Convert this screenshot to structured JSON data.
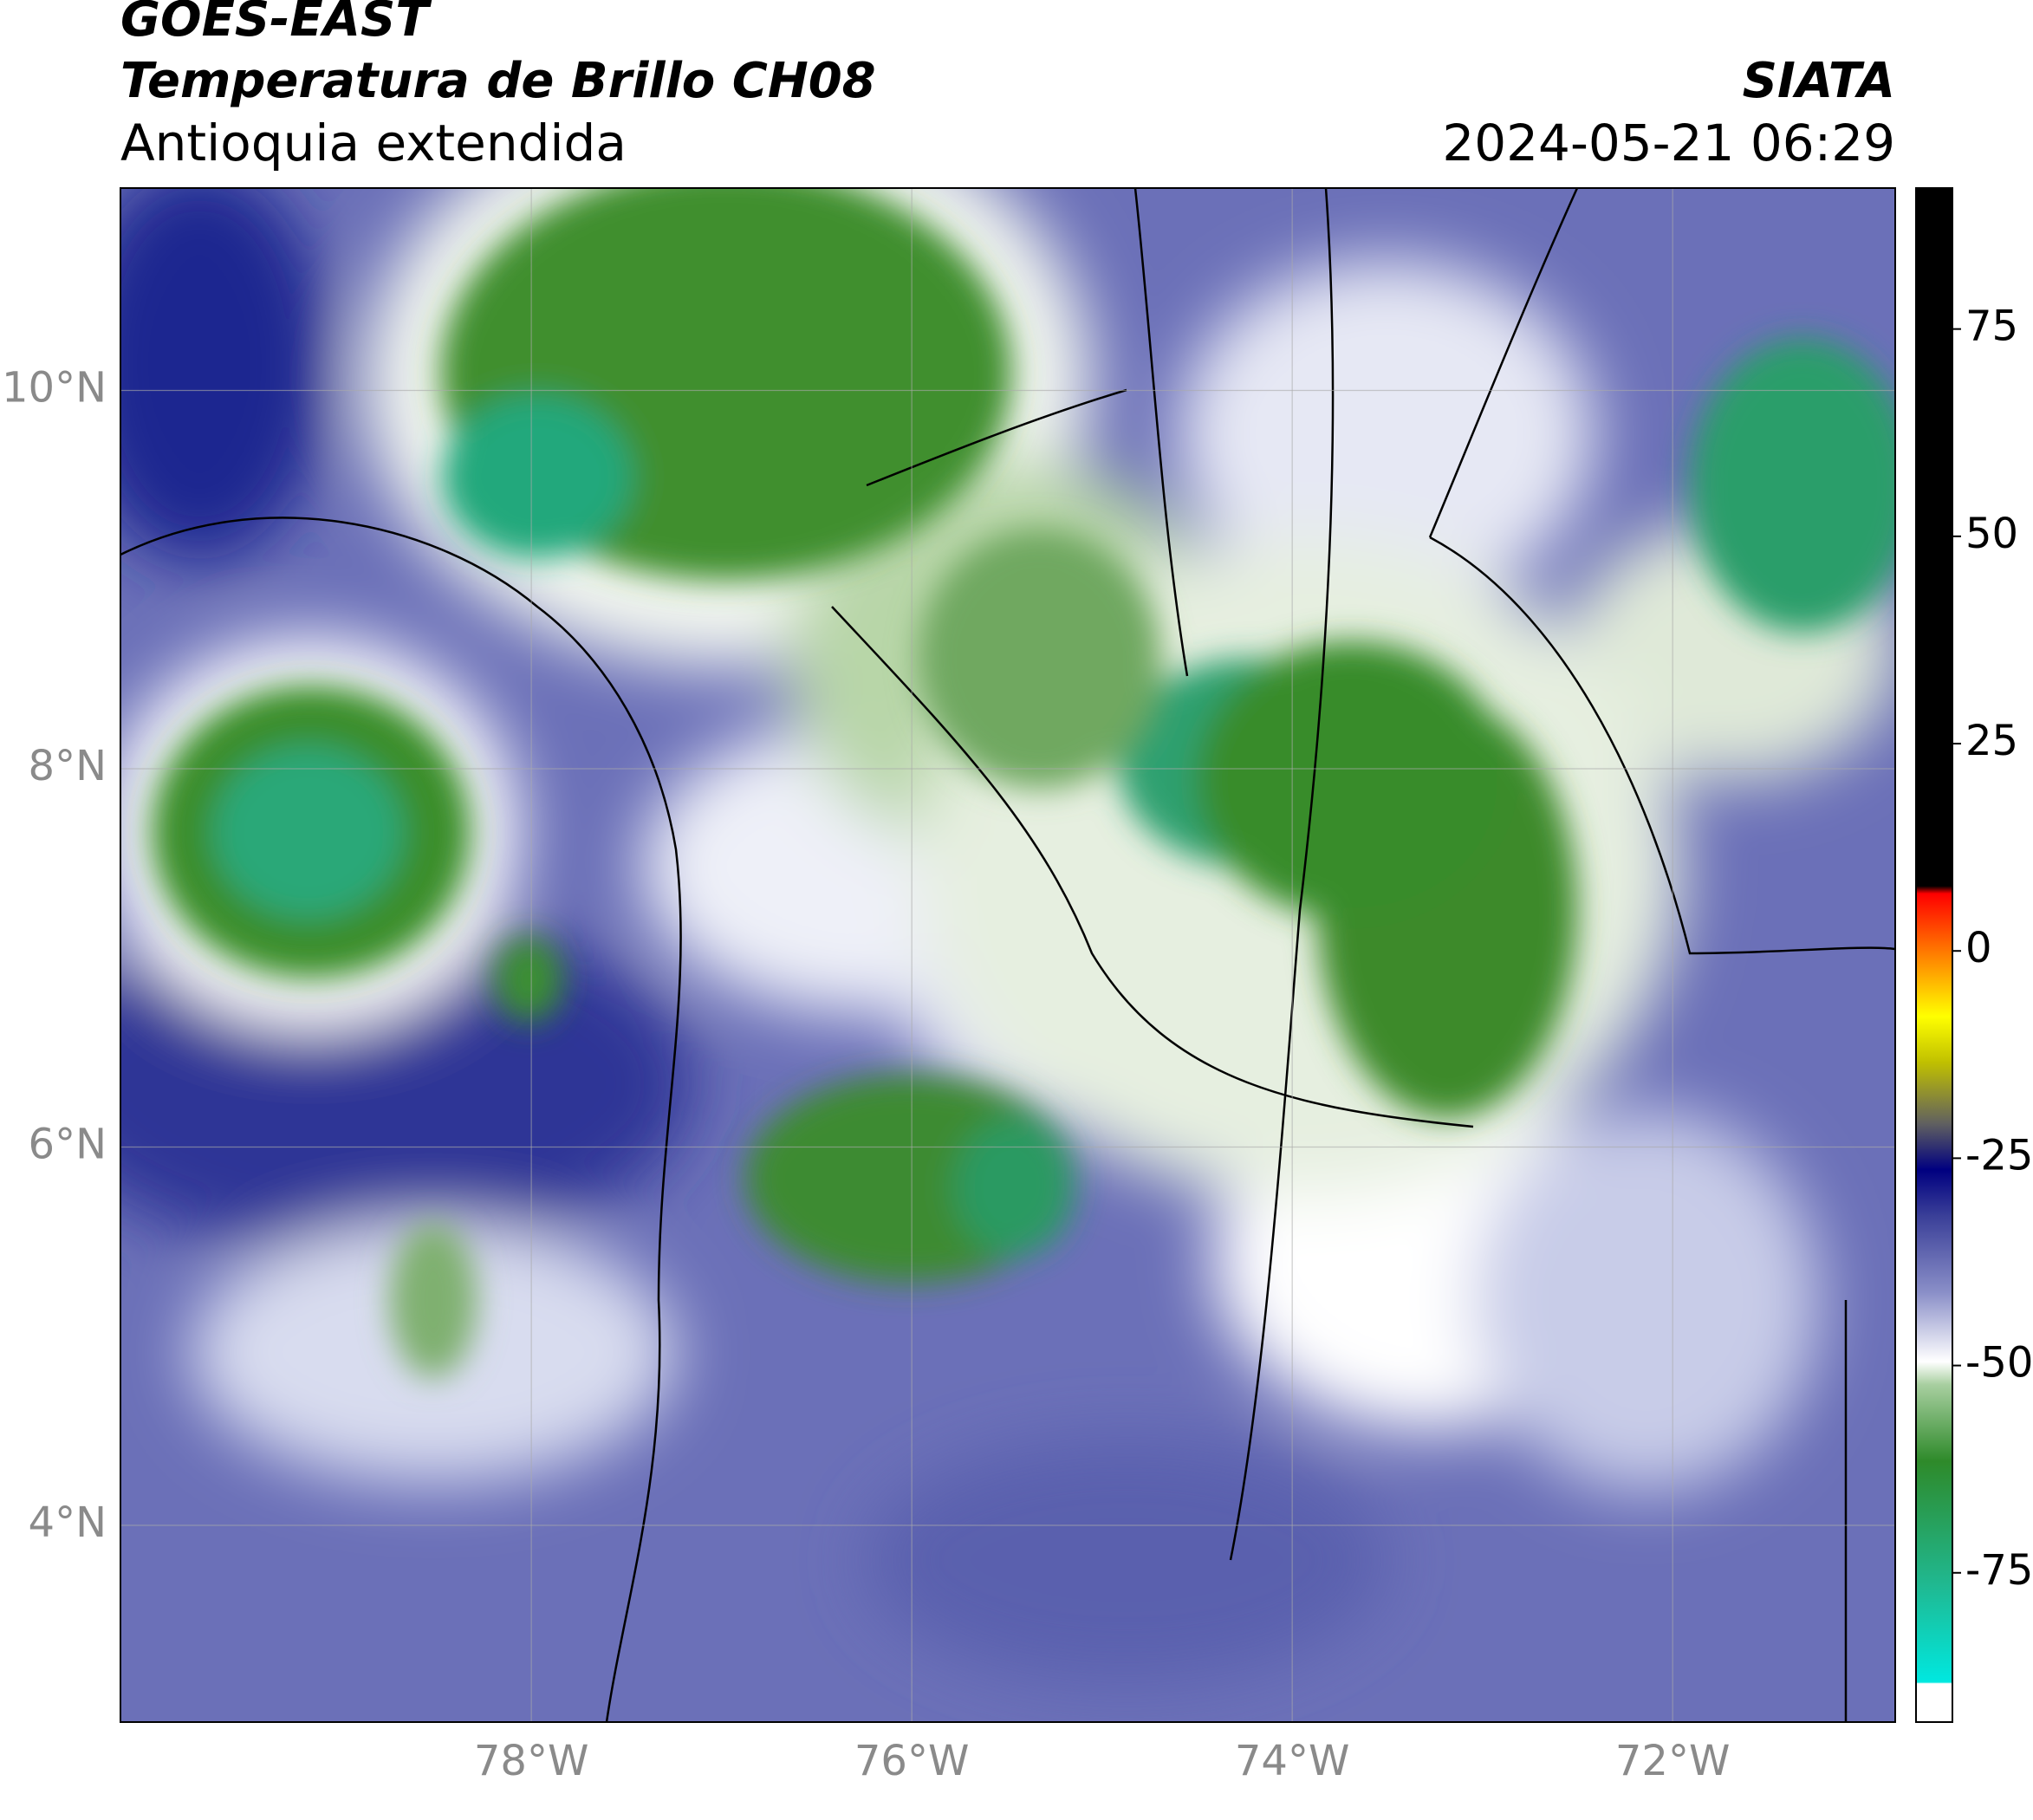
{
  "header": {
    "satellite": "GOES-EAST",
    "product": "Temperatura de Brillo CH08",
    "region": "Antioquia extendida",
    "source": "SIATA",
    "datetime": "2024-05-21 06:29"
  },
  "map": {
    "xlim": [
      -80.16,
      -70.83
    ],
    "ylim": [
      2.96,
      11.07
    ],
    "xticks": [
      {
        "value": -78,
        "label": "78°W"
      },
      {
        "value": -76,
        "label": "76°W"
      },
      {
        "value": -74,
        "label": "74°W"
      },
      {
        "value": -72,
        "label": "72°W"
      }
    ],
    "yticks": [
      {
        "value": 10,
        "label": "10°N"
      },
      {
        "value": 8,
        "label": "8°N"
      },
      {
        "value": 6,
        "label": "6°N"
      },
      {
        "value": 4,
        "label": "4°N"
      }
    ],
    "grid": true
  },
  "colorbar": {
    "lim": [
      -93,
      92
    ],
    "ticks": [
      75,
      50,
      25,
      0,
      -25,
      -50,
      -75
    ]
  }
}
